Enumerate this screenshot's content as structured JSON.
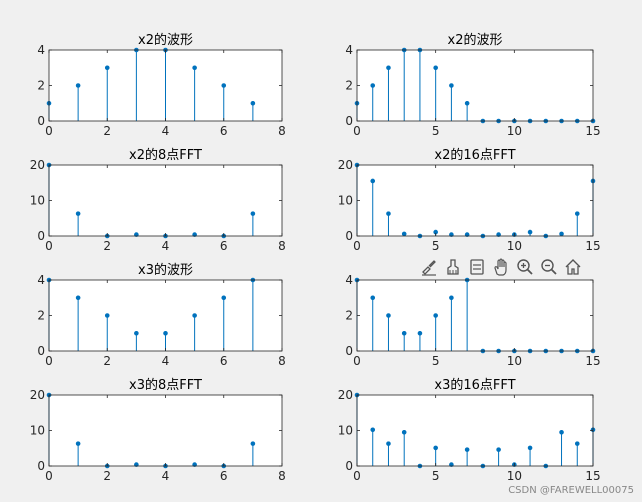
{
  "figure": {
    "background": "#f0f0f0",
    "stem_color": "#0072bd",
    "watermark": "CSDN @FAREWELL00075"
  },
  "toolbar": {
    "icons": [
      "brush-icon",
      "clear-brush-icon",
      "data-tips-icon",
      "pan-hand-icon",
      "zoom-in-icon",
      "zoom-out-icon",
      "home-icon"
    ]
  },
  "chart_data": [
    {
      "type": "stem",
      "title": "x2的波形",
      "x": [
        0,
        1,
        2,
        3,
        4,
        5,
        6,
        7
      ],
      "y": [
        1,
        2,
        3,
        4,
        4,
        3,
        2,
        1
      ],
      "xlim": [
        0,
        8
      ],
      "ylim": [
        0,
        4
      ],
      "xticks": [
        0,
        2,
        4,
        6,
        8
      ],
      "yticks": [
        0,
        2,
        4
      ]
    },
    {
      "type": "stem",
      "title": "x2的波形",
      "x": [
        0,
        1,
        2,
        3,
        4,
        5,
        6,
        7,
        8,
        9,
        10,
        11,
        12,
        13,
        14,
        15
      ],
      "y": [
        1,
        2,
        3,
        4,
        4,
        3,
        2,
        1,
        0,
        0,
        0,
        0,
        0,
        0,
        0,
        0
      ],
      "xlim": [
        0,
        15
      ],
      "ylim": [
        0,
        4
      ],
      "xticks": [
        0,
        5,
        10,
        15
      ],
      "yticks": [
        0,
        2,
        4
      ]
    },
    {
      "type": "stem",
      "title": "x2的8点FFT",
      "x": [
        0,
        1,
        2,
        3,
        4,
        5,
        6,
        7
      ],
      "y": [
        20,
        6.3,
        0,
        0.4,
        0,
        0.4,
        0,
        6.3
      ],
      "xlim": [
        0,
        8
      ],
      "ylim": [
        0,
        20
      ],
      "xticks": [
        0,
        2,
        4,
        6,
        8
      ],
      "yticks": [
        0,
        10,
        20
      ]
    },
    {
      "type": "stem",
      "title": "x2的16点FFT",
      "x": [
        0,
        1,
        2,
        3,
        4,
        5,
        6,
        7,
        8,
        9,
        10,
        11,
        12,
        13,
        14,
        15
      ],
      "y": [
        20,
        15.5,
        6.3,
        0.6,
        0,
        1.1,
        0.4,
        0.4,
        0,
        0.4,
        0.4,
        1.1,
        0,
        0.6,
        6.3,
        15.5
      ],
      "xlim": [
        0,
        15
      ],
      "ylim": [
        0,
        20
      ],
      "xticks": [
        0,
        5,
        10,
        15
      ],
      "yticks": [
        0,
        10,
        20
      ]
    },
    {
      "type": "stem",
      "title": "x3的波形",
      "x": [
        0,
        1,
        2,
        3,
        4,
        5,
        6,
        7
      ],
      "y": [
        4,
        3,
        2,
        1,
        1,
        2,
        3,
        4
      ],
      "xlim": [
        0,
        8
      ],
      "ylim": [
        0,
        4
      ],
      "xticks": [
        0,
        2,
        4,
        6,
        8
      ],
      "yticks": [
        0,
        2,
        4
      ]
    },
    {
      "type": "stem",
      "title": "",
      "x": [
        0,
        1,
        2,
        3,
        4,
        5,
        6,
        7,
        8,
        9,
        10,
        11,
        12,
        13,
        14,
        15
      ],
      "y": [
        4,
        3,
        2,
        1,
        1,
        2,
        3,
        4,
        0,
        0,
        0,
        0,
        0,
        0,
        0,
        0
      ],
      "xlim": [
        0,
        15
      ],
      "ylim": [
        0,
        4
      ],
      "xticks": [
        0,
        5,
        10,
        15
      ],
      "yticks": [
        0,
        2,
        4
      ]
    },
    {
      "type": "stem",
      "title": "x3的8点FFT",
      "x": [
        0,
        1,
        2,
        3,
        4,
        5,
        6,
        7
      ],
      "y": [
        20,
        6.3,
        0,
        0.4,
        0,
        0.4,
        0,
        6.3
      ],
      "xlim": [
        0,
        8
      ],
      "ylim": [
        0,
        20
      ],
      "xticks": [
        0,
        2,
        4,
        6,
        8
      ],
      "yticks": [
        0,
        10,
        20
      ]
    },
    {
      "type": "stem",
      "title": "x3的16点FFT",
      "x": [
        0,
        1,
        2,
        3,
        4,
        5,
        6,
        7,
        8,
        9,
        10,
        11,
        12,
        13,
        14,
        15
      ],
      "y": [
        20,
        10.2,
        6.3,
        9.5,
        0,
        5.1,
        0.4,
        4.6,
        0,
        4.6,
        0.4,
        5.1,
        0,
        9.5,
        6.3,
        10.2
      ],
      "xlim": [
        0,
        15
      ],
      "ylim": [
        0,
        20
      ],
      "xticks": [
        0,
        5,
        10,
        15
      ],
      "yticks": [
        0,
        10,
        20
      ]
    }
  ]
}
